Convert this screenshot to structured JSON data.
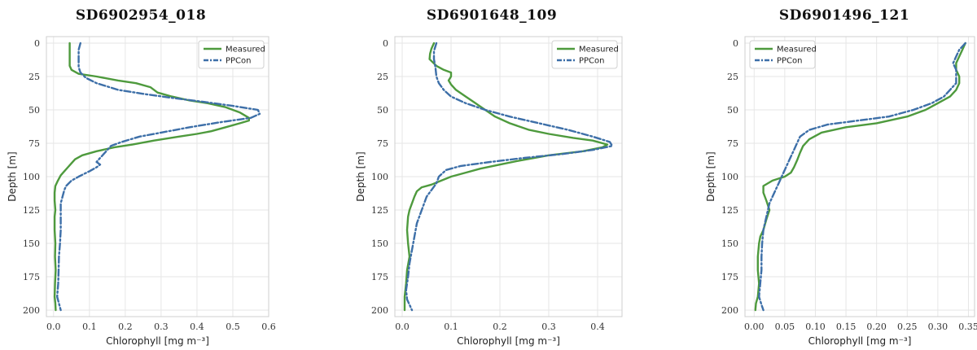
{
  "chart_data": [
    {
      "type": "line",
      "title": "SD6902954_018",
      "xlabel": "Chlorophyll [mg m⁻³]",
      "ylabel": "Depth [m]",
      "xlim": [
        -0.02,
        0.6
      ],
      "ylim": [
        0,
        200
      ],
      "y_inverted": true,
      "xticks": [
        0.0,
        0.1,
        0.2,
        0.3,
        0.4,
        0.5,
        0.6
      ],
      "xtick_labels": [
        "0.0",
        "0.1",
        "0.2",
        "0.3",
        "0.4",
        "0.5",
        "0.6"
      ],
      "yticks": [
        0,
        25,
        50,
        75,
        100,
        125,
        150,
        175,
        200
      ],
      "ytick_labels": [
        "0",
        "25",
        "50",
        "75",
        "100",
        "125",
        "150",
        "175",
        "200"
      ],
      "legend_position": "top-right",
      "series": [
        {
          "name": "Measured",
          "color": "#4e9a3d",
          "style": "solid",
          "points": [
            [
              0.045,
              0
            ],
            [
              0.045,
              10
            ],
            [
              0.045,
              17
            ],
            [
              0.05,
              20
            ],
            [
              0.07,
              23
            ],
            [
              0.12,
              25
            ],
            [
              0.18,
              28
            ],
            [
              0.23,
              30
            ],
            [
              0.27,
              33
            ],
            [
              0.29,
              37
            ],
            [
              0.33,
              40
            ],
            [
              0.38,
              43
            ],
            [
              0.43,
              45
            ],
            [
              0.48,
              48
            ],
            [
              0.52,
              52
            ],
            [
              0.545,
              56
            ],
            [
              0.545,
              58
            ],
            [
              0.52,
              60
            ],
            [
              0.48,
              63
            ],
            [
              0.44,
              66
            ],
            [
              0.4,
              68
            ],
            [
              0.35,
              70
            ],
            [
              0.28,
              73
            ],
            [
              0.22,
              76
            ],
            [
              0.17,
              78
            ],
            [
              0.12,
              81
            ],
            [
              0.08,
              84
            ],
            [
              0.06,
              87
            ],
            [
              0.05,
              90
            ],
            [
              0.04,
              93
            ],
            [
              0.03,
              96
            ],
            [
              0.02,
              99
            ],
            [
              0.012,
              103
            ],
            [
              0.005,
              107
            ],
            [
              0.003,
              112
            ],
            [
              0.003,
              118
            ],
            [
              0.005,
              125
            ],
            [
              0.003,
              130
            ],
            [
              0.003,
              140
            ],
            [
              0.005,
              150
            ],
            [
              0.004,
              160
            ],
            [
              0.006,
              170
            ],
            [
              0.004,
              180
            ],
            [
              0.003,
              190
            ],
            [
              0.005,
              195
            ],
            [
              0.006,
              200
            ]
          ]
        },
        {
          "name": "PPCon",
          "color": "#3d6fa8",
          "style": "dashdot",
          "points": [
            [
              0.075,
              0
            ],
            [
              0.07,
              5
            ],
            [
              0.07,
              12
            ],
            [
              0.07,
              18
            ],
            [
              0.075,
              22
            ],
            [
              0.09,
              26
            ],
            [
              0.12,
              30
            ],
            [
              0.18,
              35
            ],
            [
              0.25,
              38
            ],
            [
              0.33,
              41
            ],
            [
              0.42,
              44
            ],
            [
              0.5,
              47
            ],
            [
              0.57,
              50
            ],
            [
              0.575,
              53
            ],
            [
              0.55,
              56
            ],
            [
              0.47,
              59
            ],
            [
              0.38,
              63
            ],
            [
              0.3,
              67
            ],
            [
              0.24,
              70
            ],
            [
              0.19,
              74
            ],
            [
              0.16,
              77
            ],
            [
              0.15,
              80
            ],
            [
              0.14,
              83
            ],
            [
              0.13,
              86
            ],
            [
              0.12,
              89
            ],
            [
              0.13,
              91
            ],
            [
              0.12,
              93
            ],
            [
              0.1,
              96
            ],
            [
              0.07,
              100
            ],
            [
              0.05,
              103
            ],
            [
              0.035,
              107
            ],
            [
              0.03,
              110
            ],
            [
              0.025,
              115
            ],
            [
              0.02,
              120
            ],
            [
              0.02,
              130
            ],
            [
              0.02,
              140
            ],
            [
              0.018,
              150
            ],
            [
              0.015,
              160
            ],
            [
              0.014,
              170
            ],
            [
              0.013,
              180
            ],
            [
              0.01,
              190
            ],
            [
              0.015,
              195
            ],
            [
              0.02,
              200
            ]
          ]
        }
      ]
    },
    {
      "type": "line",
      "title": "SD6901648_109",
      "xlabel": "Chlorophyll [mg m⁻³]",
      "ylabel": "Depth [m]",
      "xlim": [
        -0.015,
        0.45
      ],
      "ylim": [
        0,
        200
      ],
      "y_inverted": true,
      "xticks": [
        0.0,
        0.1,
        0.2,
        0.3,
        0.4
      ],
      "xtick_labels": [
        "0.0",
        "0.1",
        "0.2",
        "0.3",
        "0.4"
      ],
      "yticks": [
        0,
        25,
        50,
        75,
        100,
        125,
        150,
        175,
        200
      ],
      "ytick_labels": [
        "0",
        "25",
        "50",
        "75",
        "100",
        "125",
        "150",
        "175",
        "200"
      ],
      "legend_position": "top-right",
      "series": [
        {
          "name": "Measured",
          "color": "#4e9a3d",
          "style": "solid",
          "points": [
            [
              0.065,
              0
            ],
            [
              0.06,
              4
            ],
            [
              0.057,
              8
            ],
            [
              0.056,
              12
            ],
            [
              0.07,
              17
            ],
            [
              0.085,
              20
            ],
            [
              0.1,
              22
            ],
            [
              0.1,
              25
            ],
            [
              0.095,
              28
            ],
            [
              0.1,
              31
            ],
            [
              0.11,
              35
            ],
            [
              0.13,
              40
            ],
            [
              0.15,
              45
            ],
            [
              0.17,
              50
            ],
            [
              0.19,
              55
            ],
            [
              0.22,
              60
            ],
            [
              0.26,
              65
            ],
            [
              0.3,
              68
            ],
            [
              0.35,
              71
            ],
            [
              0.39,
              73
            ],
            [
              0.42,
              76
            ],
            [
              0.41,
              78
            ],
            [
              0.37,
              81
            ],
            [
              0.3,
              84
            ],
            [
              0.24,
              88
            ],
            [
              0.2,
              91
            ],
            [
              0.16,
              94
            ],
            [
              0.13,
              97
            ],
            [
              0.1,
              100
            ],
            [
              0.08,
              103
            ],
            [
              0.06,
              106
            ],
            [
              0.04,
              108
            ],
            [
              0.03,
              111
            ],
            [
              0.025,
              115
            ],
            [
              0.02,
              120
            ],
            [
              0.015,
              125
            ],
            [
              0.012,
              130
            ],
            [
              0.01,
              140
            ],
            [
              0.012,
              150
            ],
            [
              0.015,
              160
            ],
            [
              0.01,
              170
            ],
            [
              0.008,
              180
            ],
            [
              0.005,
              190
            ],
            [
              0.005,
              200
            ]
          ]
        },
        {
          "name": "PPCon",
          "color": "#3d6fa8",
          "style": "dashdot",
          "points": [
            [
              0.07,
              0
            ],
            [
              0.065,
              6
            ],
            [
              0.065,
              12
            ],
            [
              0.068,
              18
            ],
            [
              0.07,
              25
            ],
            [
              0.075,
              30
            ],
            [
              0.085,
              35
            ],
            [
              0.1,
              40
            ],
            [
              0.13,
              45
            ],
            [
              0.17,
              50
            ],
            [
              0.22,
              55
            ],
            [
              0.28,
              60
            ],
            [
              0.34,
              65
            ],
            [
              0.39,
              70
            ],
            [
              0.425,
              74
            ],
            [
              0.43,
              77
            ],
            [
              0.39,
              80
            ],
            [
              0.33,
              83
            ],
            [
              0.25,
              86
            ],
            [
              0.18,
              89
            ],
            [
              0.12,
              92
            ],
            [
              0.09,
              95
            ],
            [
              0.075,
              100
            ],
            [
              0.07,
              105
            ],
            [
              0.06,
              110
            ],
            [
              0.05,
              115
            ],
            [
              0.04,
              125
            ],
            [
              0.03,
              135
            ],
            [
              0.025,
              145
            ],
            [
              0.02,
              155
            ],
            [
              0.015,
              165
            ],
            [
              0.012,
              175
            ],
            [
              0.008,
              185
            ],
            [
              0.01,
              192
            ],
            [
              0.015,
              196
            ],
            [
              0.02,
              200
            ]
          ]
        }
      ]
    },
    {
      "type": "line",
      "title": "SD6901496_121",
      "xlabel": "Chlorophyll [mg m⁻³]",
      "ylabel": "Depth [m]",
      "xlim": [
        -0.015,
        0.36
      ],
      "ylim": [
        0,
        200
      ],
      "y_inverted": true,
      "xticks": [
        0.0,
        0.05,
        0.1,
        0.15,
        0.2,
        0.25,
        0.3,
        0.35
      ],
      "xtick_labels": [
        "0.00",
        "0.05",
        "0.10",
        "0.15",
        "0.20",
        "0.25",
        "0.30",
        "0.35"
      ],
      "yticks": [
        0,
        25,
        50,
        75,
        100,
        125,
        150,
        175,
        200
      ],
      "ytick_labels": [
        "0",
        "25",
        "50",
        "75",
        "100",
        "125",
        "150",
        "175",
        "200"
      ],
      "legend_position": "top-left",
      "series": [
        {
          "name": "Measured",
          "color": "#4e9a3d",
          "style": "solid",
          "points": [
            [
              0.345,
              0
            ],
            [
              0.34,
              5
            ],
            [
              0.335,
              10
            ],
            [
              0.33,
              15
            ],
            [
              0.33,
              20
            ],
            [
              0.335,
              25
            ],
            [
              0.335,
              30
            ],
            [
              0.33,
              35
            ],
            [
              0.32,
              40
            ],
            [
              0.3,
              45
            ],
            [
              0.28,
              50
            ],
            [
              0.25,
              55
            ],
            [
              0.2,
              60
            ],
            [
              0.15,
              63
            ],
            [
              0.11,
              67
            ],
            [
              0.09,
              72
            ],
            [
              0.08,
              77
            ],
            [
              0.075,
              82
            ],
            [
              0.07,
              88
            ],
            [
              0.065,
              93
            ],
            [
              0.06,
              97
            ],
            [
              0.05,
              100
            ],
            [
              0.03,
              103
            ],
            [
              0.015,
              107
            ],
            [
              0.015,
              112
            ],
            [
              0.02,
              118
            ],
            [
              0.025,
              125
            ],
            [
              0.02,
              132
            ],
            [
              0.015,
              140
            ],
            [
              0.01,
              145
            ],
            [
              0.008,
              150
            ],
            [
              0.006,
              160
            ],
            [
              0.006,
              170
            ],
            [
              0.008,
              180
            ],
            [
              0.006,
              190
            ],
            [
              0.003,
              195
            ],
            [
              0.002,
              200
            ]
          ]
        },
        {
          "name": "PPCon",
          "color": "#3d6fa8",
          "style": "dashdot",
          "points": [
            [
              0.345,
              0
            ],
            [
              0.335,
              5
            ],
            [
              0.33,
              10
            ],
            [
              0.325,
              15
            ],
            [
              0.33,
              20
            ],
            [
              0.33,
              25
            ],
            [
              0.33,
              30
            ],
            [
              0.32,
              35
            ],
            [
              0.31,
              40
            ],
            [
              0.29,
              45
            ],
            [
              0.26,
              50
            ],
            [
              0.22,
              55
            ],
            [
              0.17,
              58
            ],
            [
              0.12,
              61
            ],
            [
              0.09,
              65
            ],
            [
              0.075,
              70
            ],
            [
              0.07,
              75
            ],
            [
              0.065,
              80
            ],
            [
              0.06,
              85
            ],
            [
              0.055,
              90
            ],
            [
              0.05,
              95
            ],
            [
              0.045,
              100
            ],
            [
              0.04,
              105
            ],
            [
              0.035,
              110
            ],
            [
              0.03,
              115
            ],
            [
              0.025,
              120
            ],
            [
              0.02,
              130
            ],
            [
              0.015,
              140
            ],
            [
              0.013,
              150
            ],
            [
              0.012,
              160
            ],
            [
              0.012,
              170
            ],
            [
              0.01,
              180
            ],
            [
              0.008,
              190
            ],
            [
              0.012,
              196
            ],
            [
              0.015,
              200
            ]
          ]
        }
      ]
    }
  ]
}
